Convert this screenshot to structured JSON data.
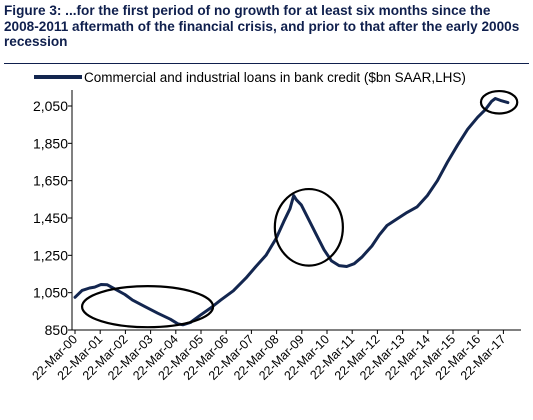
{
  "header": {
    "title": "Figure 3: ...for the first period of no growth for at least six months since the 2008-2011 aftermath of the financial crisis, and prior to that after the early 2000s recession"
  },
  "colors": {
    "series": "#13264f",
    "title": "#0f1f4d",
    "axis": "#000000"
  },
  "chart_data": {
    "type": "line",
    "title": "",
    "xlabel": "",
    "ylabel": "",
    "ylim": [
      850,
      2150
    ],
    "yticks": [
      850,
      1050,
      1250,
      1450,
      1650,
      1850,
      2050
    ],
    "ytick_labels": [
      "850",
      "1,050",
      "1,250",
      "1,450",
      "1,650",
      "1,850",
      "2,050"
    ],
    "xlim": [
      2000.22,
      2017.6
    ],
    "xtick_labels": [
      "22-Mar-00",
      "22-Mar-01",
      "22-Mar-02",
      "22-Mar-03",
      "22-Mar-04",
      "22-Mar-05",
      "22-Mar-06",
      "22-Mar-07",
      "22-Mar-08",
      "22-Mar-09",
      "22-Mar-10",
      "22-Mar-11",
      "22-Mar-12",
      "22-Mar-13",
      "22-Mar-14",
      "22-Mar-15",
      "22-Mar-16",
      "22-Mar-17"
    ],
    "legend": {
      "placement": "top",
      "label": "Commercial and industrial loans in bank credit ($bn SAAR,LHS)"
    },
    "grid": false,
    "series": [
      {
        "name": "Commercial and industrial loans in bank credit ($bn SAAR,LHS)",
        "points": [
          [
            2000.22,
            1025
          ],
          [
            2000.5,
            1062
          ],
          [
            2000.8,
            1075
          ],
          [
            2001.0,
            1080
          ],
          [
            2001.25,
            1094
          ],
          [
            2001.5,
            1092
          ],
          [
            2001.8,
            1070
          ],
          [
            2002.2,
            1040
          ],
          [
            2002.5,
            1010
          ],
          [
            2003.0,
            975
          ],
          [
            2003.5,
            940
          ],
          [
            2004.0,
            908
          ],
          [
            2004.3,
            883
          ],
          [
            2004.5,
            878
          ],
          [
            2004.8,
            890
          ],
          [
            2005.2,
            930
          ],
          [
            2005.6,
            968
          ],
          [
            2006.0,
            1010
          ],
          [
            2006.5,
            1060
          ],
          [
            2007.0,
            1128
          ],
          [
            2007.4,
            1190
          ],
          [
            2007.8,
            1250
          ],
          [
            2008.2,
            1340
          ],
          [
            2008.5,
            1430
          ],
          [
            2008.75,
            1500
          ],
          [
            2008.9,
            1570
          ],
          [
            2009.0,
            1548
          ],
          [
            2009.2,
            1520
          ],
          [
            2009.5,
            1440
          ],
          [
            2009.8,
            1360
          ],
          [
            2010.1,
            1280
          ],
          [
            2010.4,
            1220
          ],
          [
            2010.7,
            1195
          ],
          [
            2011.0,
            1190
          ],
          [
            2011.3,
            1205
          ],
          [
            2011.6,
            1240
          ],
          [
            2012.0,
            1300
          ],
          [
            2012.3,
            1360
          ],
          [
            2012.6,
            1410
          ],
          [
            2013.0,
            1445
          ],
          [
            2013.4,
            1480
          ],
          [
            2013.8,
            1510
          ],
          [
            2014.2,
            1570
          ],
          [
            2014.6,
            1650
          ],
          [
            2015.0,
            1750
          ],
          [
            2015.4,
            1840
          ],
          [
            2015.8,
            1925
          ],
          [
            2016.2,
            1990
          ],
          [
            2016.5,
            2030
          ],
          [
            2016.75,
            2075
          ],
          [
            2016.9,
            2090
          ],
          [
            2017.1,
            2080
          ],
          [
            2017.4,
            2068
          ]
        ]
      }
    ],
    "annotations": [
      {
        "type": "ellipse",
        "center": [
          2003.1,
          975
        ],
        "half_width_years": 2.6,
        "half_height": 110
      },
      {
        "type": "ellipse",
        "center": [
          2009.5,
          1400
        ],
        "half_width_years": 1.35,
        "half_height": 205
      },
      {
        "type": "ellipse",
        "center": [
          2017.05,
          2070
        ],
        "half_width_years": 0.72,
        "half_height": 60
      }
    ]
  }
}
